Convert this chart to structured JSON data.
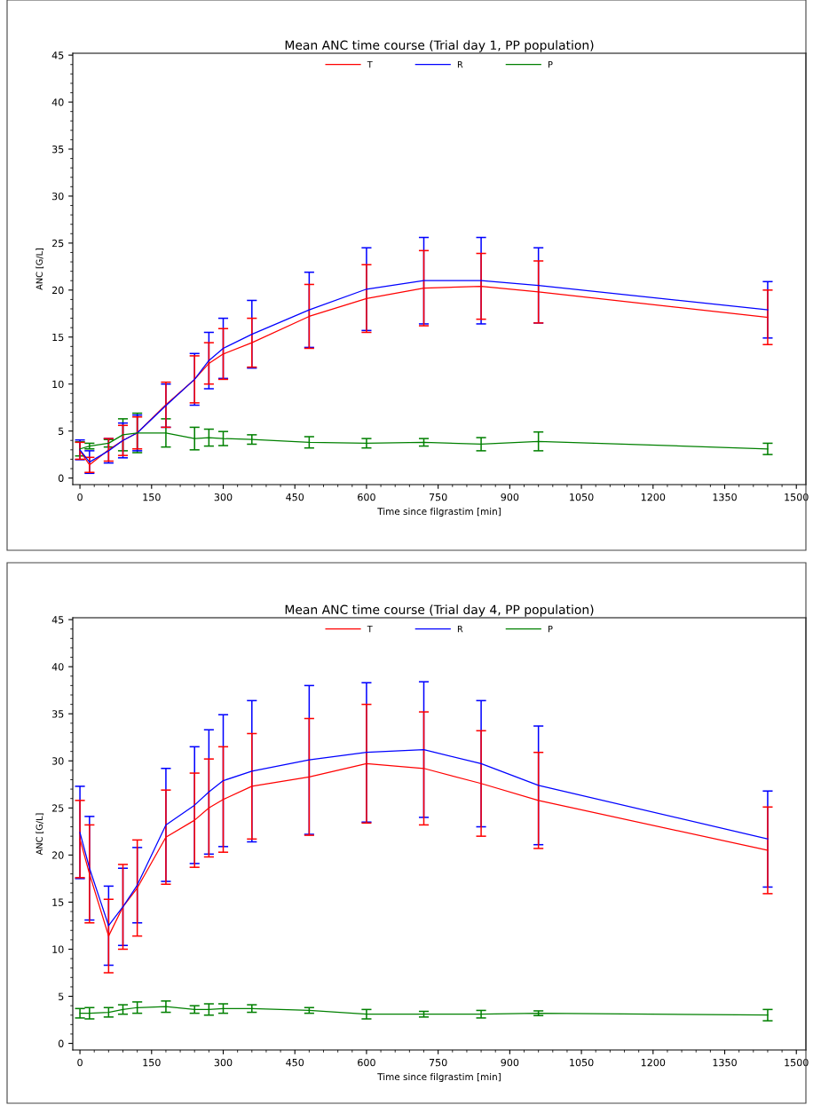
{
  "chart_data": [
    {
      "type": "line",
      "title": "Mean ANC time course (Trial day 1, PP population)",
      "xlabel": "Time since filgrastim [min]",
      "ylabel": "ANC [G/L]",
      "x": [
        0,
        20,
        60,
        90,
        120,
        180,
        240,
        270,
        300,
        360,
        480,
        600,
        720,
        840,
        960,
        1440
      ],
      "xlim": [
        -15,
        1520
      ],
      "xticks": [
        0,
        150,
        300,
        450,
        600,
        750,
        900,
        1050,
        1200,
        1350,
        1500
      ],
      "ylim": [
        -0.7,
        45.2
      ],
      "yticks": [
        0,
        5,
        10,
        15,
        20,
        25,
        30,
        35,
        40,
        45
      ],
      "grid": false,
      "legend": "top",
      "marker": "none",
      "line_style": "solid",
      "series": [
        {
          "name": "T",
          "color": "#ff0000",
          "values": [
            2.9,
            1.4,
            3.0,
            4.0,
            4.8,
            7.8,
            10.5,
            12.2,
            13.2,
            14.4,
            17.2,
            19.1,
            20.2,
            20.4,
            19.8,
            17.1
          ],
          "errors": [
            0.9,
            0.8,
            1.2,
            1.6,
            1.7,
            2.4,
            2.5,
            2.2,
            2.7,
            2.6,
            3.4,
            3.6,
            4.0,
            3.5,
            3.3,
            2.9
          ]
        },
        {
          "name": "R",
          "color": "#0000ff",
          "values": [
            3.0,
            1.7,
            2.9,
            4.0,
            4.8,
            7.7,
            10.5,
            12.5,
            13.8,
            15.3,
            17.9,
            20.1,
            21.0,
            21.0,
            20.5,
            17.9
          ],
          "errors": [
            1.05,
            1.2,
            1.3,
            1.85,
            1.9,
            2.3,
            2.75,
            3.0,
            3.2,
            3.6,
            4.0,
            4.4,
            4.6,
            4.6,
            4.0,
            3.0
          ]
        },
        {
          "name": "P",
          "color": "#008000",
          "values": [
            3.1,
            3.4,
            3.7,
            4.6,
            4.8,
            4.8,
            4.2,
            4.3,
            4.2,
            4.1,
            3.8,
            3.7,
            3.8,
            3.6,
            3.9,
            3.1
          ],
          "errors": [
            0.75,
            0.3,
            0.4,
            1.7,
            2.1,
            1.5,
            1.2,
            0.9,
            0.75,
            0.5,
            0.6,
            0.5,
            0.4,
            0.7,
            1.0,
            0.6
          ]
        }
      ]
    },
    {
      "type": "line",
      "title": "Mean ANC time course (Trial day 4, PP population)",
      "xlabel": "Time since filgrastim [min]",
      "ylabel": "ANC [G/L]",
      "x": [
        0,
        20,
        60,
        90,
        120,
        180,
        240,
        270,
        300,
        360,
        480,
        600,
        720,
        840,
        960,
        1440
      ],
      "xlim": [
        -15,
        1520
      ],
      "xticks": [
        0,
        150,
        300,
        450,
        600,
        750,
        900,
        1050,
        1200,
        1350,
        1500
      ],
      "ylim": [
        -0.7,
        45.2
      ],
      "yticks": [
        0,
        5,
        10,
        15,
        20,
        25,
        30,
        35,
        40,
        45
      ],
      "grid": false,
      "legend": "top",
      "marker": "none",
      "line_style": "solid",
      "series": [
        {
          "name": "T",
          "color": "#ff0000",
          "values": [
            21.7,
            18.0,
            11.4,
            14.5,
            16.5,
            21.9,
            23.7,
            25.0,
            25.9,
            27.3,
            28.3,
            29.7,
            29.2,
            27.6,
            25.8,
            20.5
          ],
          "errors": [
            4.1,
            5.2,
            3.9,
            4.5,
            5.1,
            5.0,
            5.0,
            5.2,
            5.6,
            5.6,
            6.2,
            6.3,
            6.0,
            5.6,
            5.1,
            4.6
          ]
        },
        {
          "name": "R",
          "color": "#0000ff",
          "values": [
            22.4,
            18.6,
            12.5,
            14.5,
            16.8,
            23.2,
            25.3,
            26.7,
            27.9,
            28.9,
            30.1,
            30.9,
            31.2,
            29.7,
            27.4,
            21.7
          ],
          "errors": [
            4.9,
            5.5,
            4.2,
            4.1,
            4.0,
            6.0,
            6.2,
            6.6,
            7.0,
            7.5,
            7.9,
            7.4,
            7.2,
            6.7,
            6.3,
            5.1
          ]
        },
        {
          "name": "P",
          "color": "#008000",
          "values": [
            3.2,
            3.2,
            3.3,
            3.6,
            3.8,
            3.9,
            3.6,
            3.6,
            3.7,
            3.7,
            3.5,
            3.1,
            3.1,
            3.1,
            3.2,
            3.0
          ],
          "errors": [
            0.5,
            0.6,
            0.5,
            0.5,
            0.6,
            0.6,
            0.4,
            0.6,
            0.5,
            0.4,
            0.3,
            0.5,
            0.3,
            0.4,
            0.25,
            0.6
          ]
        }
      ]
    }
  ]
}
